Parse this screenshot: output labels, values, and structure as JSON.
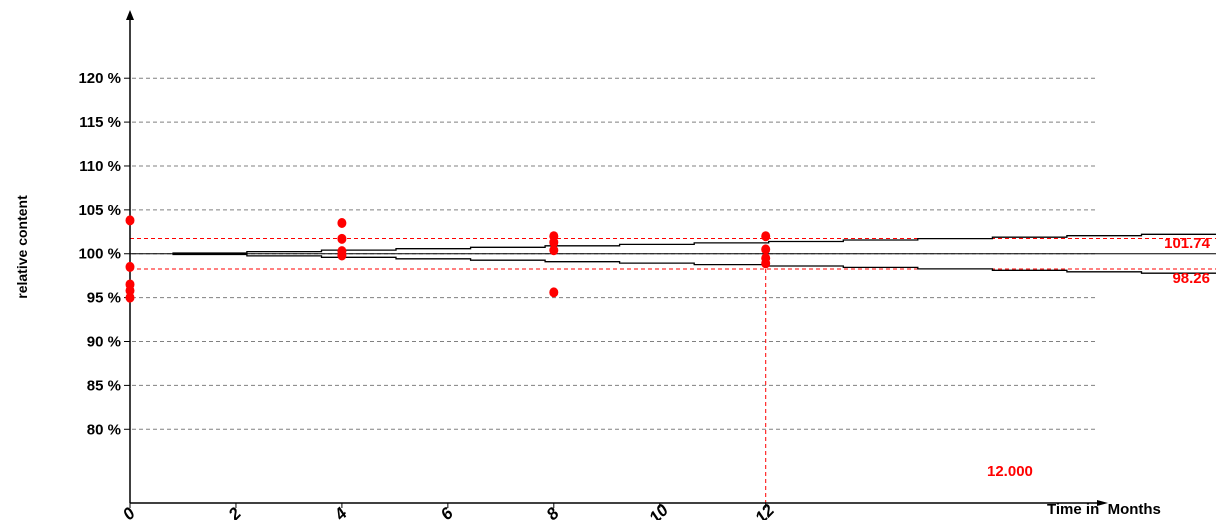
{
  "chart_data": {
    "type": "scatter",
    "xlabel": "Time in  Months",
    "ylabel": "relative content",
    "x_ticks": [
      0,
      2,
      4,
      6,
      8,
      10,
      12
    ],
    "x_tick_labels": [
      "0",
      "2",
      "4",
      "6",
      "8",
      "10",
      "12"
    ],
    "y_ticks": [
      80,
      85,
      90,
      95,
      100,
      105,
      110,
      115,
      120
    ],
    "y_tick_labels": [
      "80 %",
      "85 %",
      "90 %",
      "95 %",
      "100 %",
      "105 %",
      "110 %",
      "115 %",
      "120 %"
    ],
    "xlim": [
      0,
      20.5
    ],
    "ylim": [
      71.6,
      128.0
    ],
    "grid": "horizontal-dashed",
    "points": [
      {
        "x": 0,
        "y": 103.8
      },
      {
        "x": 0,
        "y": 98.5
      },
      {
        "x": 0,
        "y": 96.5
      },
      {
        "x": 0,
        "y": 95.8
      },
      {
        "x": 0,
        "y": 95.0
      },
      {
        "x": 4,
        "y": 103.5
      },
      {
        "x": 4,
        "y": 101.7
      },
      {
        "x": 4,
        "y": 100.3
      },
      {
        "x": 4,
        "y": 99.8
      },
      {
        "x": 8,
        "y": 102.0
      },
      {
        "x": 8,
        "y": 101.3
      },
      {
        "x": 8,
        "y": 100.4
      },
      {
        "x": 8,
        "y": 95.6
      },
      {
        "x": 12,
        "y": 102.0
      },
      {
        "x": 12,
        "y": 100.5
      },
      {
        "x": 12,
        "y": 99.5
      },
      {
        "x": 12,
        "y": 98.9
      }
    ],
    "regression": {
      "x": [
        0,
        20.5
      ],
      "y": [
        100.0,
        100.0
      ]
    },
    "upper_bound": {
      "x": [
        0.8,
        20.5
      ],
      "y": [
        100.0,
        102.3
      ]
    },
    "lower_bound": {
      "x": [
        0.8,
        20.5
      ],
      "y": [
        100.0,
        97.7
      ]
    },
    "reference_lines": {
      "upper_value": 101.74,
      "lower_value": 98.26,
      "time_value": 12.0,
      "upper_label": "101.74",
      "lower_label": "98.26",
      "time_label": "12.000"
    },
    "colors": {
      "points": "#ff0000",
      "reference": "#ff0000",
      "grid": "#808080",
      "lines": "#000000"
    }
  }
}
